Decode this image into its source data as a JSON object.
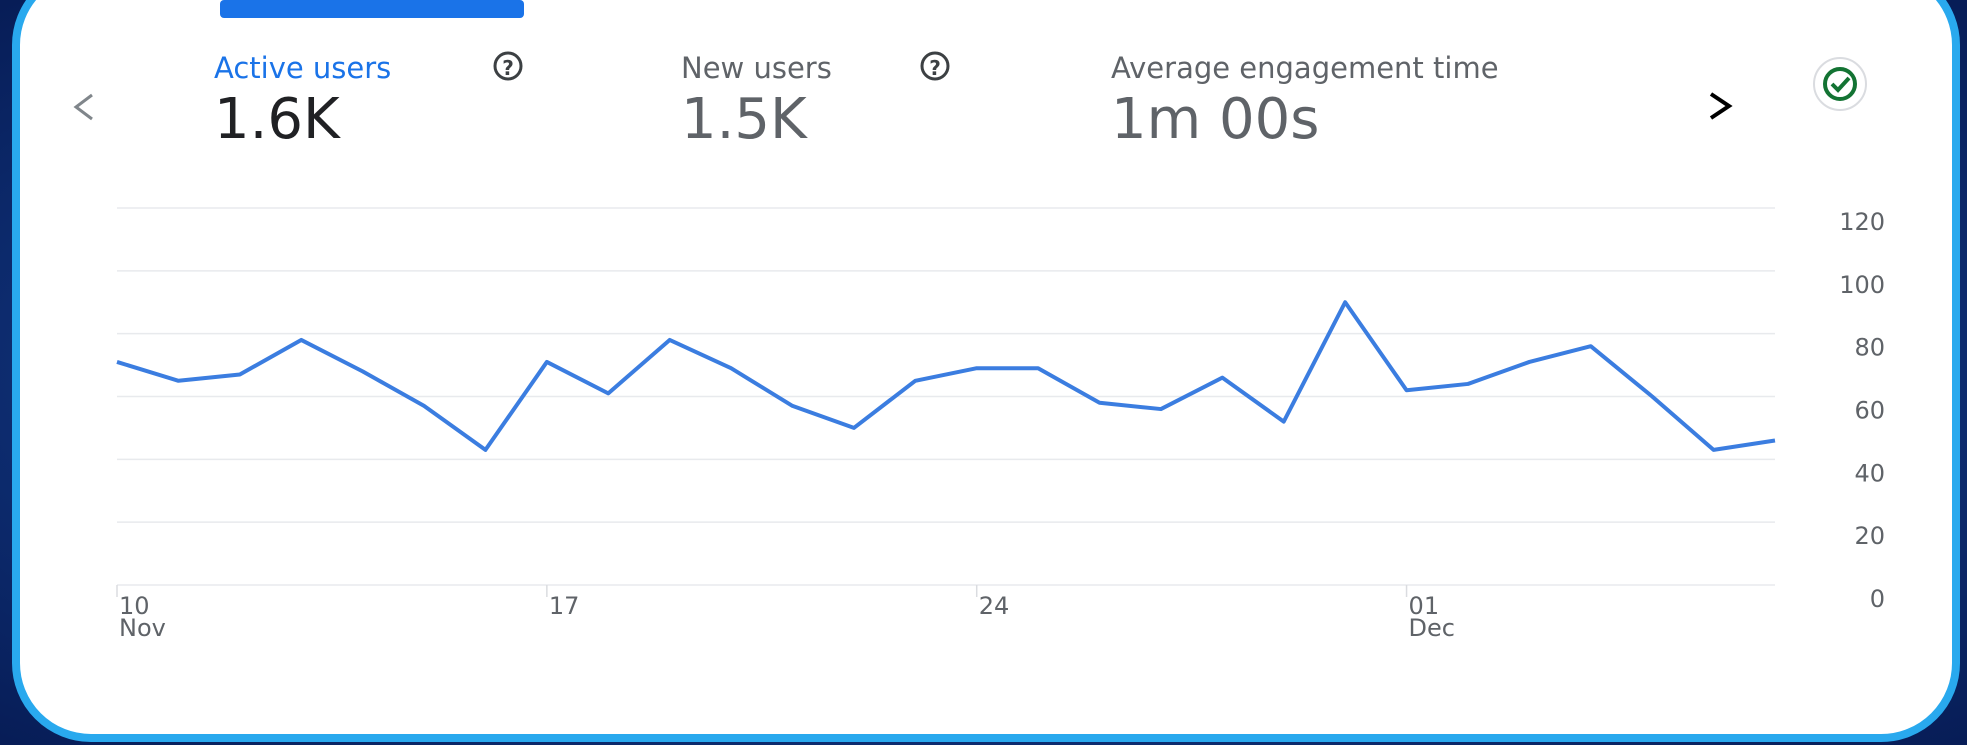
{
  "metrics": [
    {
      "label": "Active users",
      "value": "1.6K"
    },
    {
      "label": "New users",
      "value": "1.5K"
    },
    {
      "label": "Average engagement time",
      "value": "1m 00s"
    }
  ],
  "chart_data": {
    "type": "line",
    "categories": [
      "10",
      null,
      null,
      null,
      null,
      null,
      null,
      "17",
      null,
      null,
      null,
      null,
      null,
      null,
      "24",
      null,
      null,
      null,
      null,
      null,
      null,
      "01",
      null,
      null,
      null,
      null,
      null,
      null
    ],
    "month_labels": [
      "Nov",
      null,
      null,
      null,
      null,
      null,
      null,
      null,
      null,
      null,
      null,
      null,
      null,
      null,
      null,
      null,
      null,
      null,
      null,
      null,
      null,
      "Dec",
      null,
      null,
      null,
      null,
      null,
      null
    ],
    "series": [
      {
        "name": "Active users",
        "color": "#3b7de0",
        "values": [
          71,
          65,
          67,
          78,
          68,
          57,
          43,
          71,
          61,
          78,
          69,
          57,
          50,
          65,
          69,
          69,
          58,
          56,
          66,
          52,
          90,
          62,
          64,
          71,
          76,
          60,
          43,
          46
        ]
      }
    ],
    "ylim": [
      0,
      120
    ],
    "yticks": [
      0,
      20,
      40,
      60,
      80,
      100,
      120
    ],
    "grid": true
  }
}
